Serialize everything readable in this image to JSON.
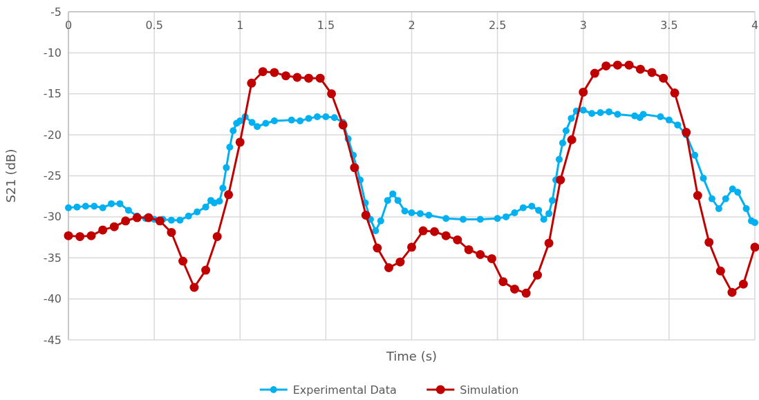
{
  "chart_data": {
    "type": "line",
    "xlabel": "Time (s)",
    "ylabel": "S21 (dB)",
    "xlim": [
      0,
      4
    ],
    "xticks": [
      0,
      0.5,
      1,
      1.5,
      2,
      2.5,
      3,
      3.5,
      4
    ],
    "ylim": [
      -45,
      -5
    ],
    "yticks": [
      -45,
      -40,
      -35,
      -30,
      -25,
      -20,
      -15,
      -10,
      -5
    ],
    "grid": true,
    "legend": "bottom",
    "marker": "circle",
    "line_style": "solid",
    "series": [
      {
        "name": "Experimental Data",
        "color": "#00b0f0",
        "x": [
          0,
          0.05,
          0.1,
          0.15,
          0.2,
          0.25,
          0.3,
          0.35,
          0.4,
          0.45,
          0.5,
          0.55,
          0.6,
          0.65,
          0.7,
          0.75,
          0.8,
          0.83,
          0.85,
          0.88,
          0.9,
          0.92,
          0.94,
          0.96,
          0.98,
          1.0,
          1.03,
          1.07,
          1.1,
          1.15,
          1.2,
          1.3,
          1.35,
          1.4,
          1.45,
          1.5,
          1.55,
          1.6,
          1.63,
          1.66,
          1.7,
          1.73,
          1.76,
          1.79,
          1.82,
          1.86,
          1.89,
          1.92,
          1.96,
          2.0,
          2.05,
          2.1,
          2.2,
          2.3,
          2.4,
          2.5,
          2.55,
          2.6,
          2.65,
          2.7,
          2.74,
          2.77,
          2.8,
          2.82,
          2.84,
          2.86,
          2.88,
          2.9,
          2.93,
          2.96,
          3.0,
          3.05,
          3.1,
          3.15,
          3.2,
          3.3,
          3.33,
          3.35,
          3.45,
          3.5,
          3.55,
          3.6,
          3.65,
          3.7,
          3.75,
          3.79,
          3.83,
          3.87,
          3.9,
          3.95,
          3.98,
          4.0
        ],
        "values": [
          -28.9,
          -28.8,
          -28.7,
          -28.7,
          -28.9,
          -28.4,
          -28.4,
          -29.2,
          -29.9,
          -30.2,
          -30.3,
          -30.3,
          -30.4,
          -30.4,
          -29.9,
          -29.4,
          -28.8,
          -28.0,
          -28.3,
          -28.1,
          -26.5,
          -24,
          -21.5,
          -19.5,
          -18.6,
          -18.3,
          -17.8,
          -18.5,
          -19.0,
          -18.6,
          -18.3,
          -18.2,
          -18.3,
          -18.0,
          -17.8,
          -17.8,
          -17.9,
          -18.5,
          -20.5,
          -22.5,
          -25.5,
          -28.3,
          -30.3,
          -31.7,
          -30.5,
          -28.0,
          -27.2,
          -28.0,
          -29.3,
          -29.5,
          -29.6,
          -29.8,
          -30.2,
          -30.3,
          -30.3,
          -30.2,
          -30.0,
          -29.5,
          -28.9,
          -28.7,
          -29.2,
          -30.3,
          -29.6,
          -28,
          -25.5,
          -23,
          -21,
          -19.5,
          -18,
          -17.1,
          -17.0,
          -17.4,
          -17.3,
          -17.2,
          -17.5,
          -17.7,
          -17.9,
          -17.5,
          -17.8,
          -18.2,
          -18.8,
          -20.0,
          -22.5,
          -25.3,
          -27.8,
          -29.0,
          -27.8,
          -26.6,
          -27.0,
          -29.0,
          -30.5,
          -30.7
        ]
      },
      {
        "name": "Simulation",
        "color": "#c00000",
        "x": [
          0,
          0.067,
          0.133,
          0.2,
          0.267,
          0.333,
          0.4,
          0.467,
          0.533,
          0.6,
          0.667,
          0.733,
          0.8,
          0.867,
          0.933,
          1.0,
          1.067,
          1.133,
          1.2,
          1.267,
          1.333,
          1.4,
          1.467,
          1.533,
          1.6,
          1.667,
          1.733,
          1.8,
          1.867,
          1.933,
          2.0,
          2.067,
          2.133,
          2.2,
          2.267,
          2.333,
          2.4,
          2.467,
          2.533,
          2.6,
          2.667,
          2.733,
          2.8,
          2.867,
          2.933,
          3.0,
          3.067,
          3.133,
          3.2,
          3.267,
          3.333,
          3.4,
          3.467,
          3.533,
          3.6,
          3.667,
          3.733,
          3.8,
          3.867,
          3.933,
          4.0
        ],
        "values": [
          -32.3,
          -32.4,
          -32.3,
          -31.6,
          -31.2,
          -30.5,
          -30.1,
          -30.1,
          -30.5,
          -31.9,
          -35.4,
          -38.6,
          -36.5,
          -32.4,
          -27.3,
          -20.9,
          -13.7,
          -12.3,
          -12.4,
          -12.8,
          -13.0,
          -13.1,
          -13.1,
          -15.0,
          -18.8,
          -24.0,
          -29.8,
          -33.8,
          -36.2,
          -35.5,
          -33.7,
          -31.7,
          -31.8,
          -32.3,
          -32.8,
          -34.0,
          -34.6,
          -35.1,
          -37.9,
          -38.8,
          -39.3,
          -37.1,
          -33.2,
          -25.5,
          -20.6,
          -14.8,
          -12.5,
          -11.6,
          -11.5,
          -11.5,
          -12.0,
          -12.4,
          -13.1,
          -14.9,
          -19.7,
          -27.4,
          -33.1,
          -36.6,
          -39.2,
          -38.2,
          -33.7
        ]
      }
    ]
  }
}
